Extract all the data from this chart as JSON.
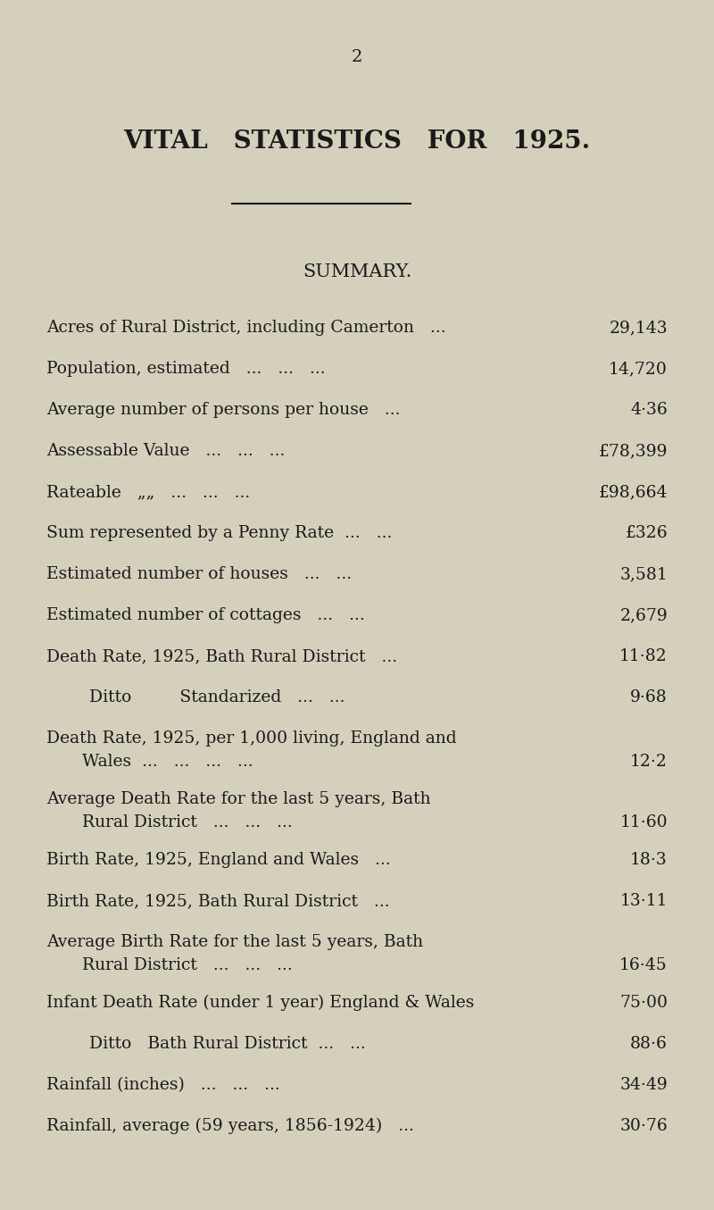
{
  "page_number": "2",
  "title": "VITAL   STATISTICS   FOR   1925.",
  "subtitle": "SUMMARY.",
  "bg_color": "#d4d0bb",
  "text_color": "#1a1a1a",
  "fig_width": 8.0,
  "fig_height": 13.55,
  "dpi": 100,
  "rows": [
    {
      "label": "Acres of Rural District, including Camerton   ...",
      "value": "29,143",
      "indent": 0,
      "multiline": false
    },
    {
      "label": "Population, estimated   ...   ...   ...",
      "value": "14,720",
      "indent": 0,
      "multiline": false
    },
    {
      "label": "Average number of persons per house   ...",
      "value": "4·36",
      "indent": 0,
      "multiline": false
    },
    {
      "label": "Assessable Value   ...   ...   ...",
      "value": "£78,399",
      "indent": 0,
      "multiline": false
    },
    {
      "label": "Rateable   „„   ...   ...   ...",
      "value": "£98,664",
      "indent": 0,
      "multiline": false
    },
    {
      "label": "Sum represented by a Penny Rate  ...   ...",
      "value": "£326",
      "indent": 0,
      "multiline": false
    },
    {
      "label": "Estimated number of houses   ...   ...",
      "value": "3,581",
      "indent": 0,
      "multiline": false
    },
    {
      "label": "Estimated number of cottages   ...   ...",
      "value": "2,679",
      "indent": 0,
      "multiline": false
    },
    {
      "label": "Death Rate, 1925, Bath Rural District   ...",
      "value": "11·82",
      "indent": 0,
      "multiline": false
    },
    {
      "label": "Ditto         Standarized   ...   ...",
      "value": "9·68",
      "indent": 1,
      "multiline": false
    },
    {
      "label": "Death Rate, 1925, per 1,000 living, England and Wales ...   ...   ...   ...",
      "value": "12·2",
      "indent": 0,
      "multiline": true,
      "line1": "Death Rate, 1925, per 1,000 living, England and",
      "line2": "Wales  ...   ...   ...   ..."
    },
    {
      "label": "Average Death Rate for the last 5 years, Bath Rural District   ...   ...   ...",
      "value": "11·60",
      "indent": 0,
      "multiline": true,
      "line1": "Average Death Rate for the last 5 years, Bath",
      "line2": "Rural District   ...   ...   ..."
    },
    {
      "label": "Birth Rate, 1925, England and Wales   ...",
      "value": "18·3",
      "indent": 0,
      "multiline": false
    },
    {
      "label": "Birth Rate, 1925, Bath Rural District   ...",
      "value": "13·11",
      "indent": 0,
      "multiline": false
    },
    {
      "label": "Average Birth Rate for the last 5 years, Bath Rural District   ...   ...   ...",
      "value": "16·45",
      "indent": 0,
      "multiline": true,
      "line1": "Average Birth Rate for the last 5 years, Bath",
      "line2": "Rural District   ...   ...   ..."
    },
    {
      "label": "Infant Death Rate (under 1 year) England & Wales",
      "value": "75·00",
      "indent": 0,
      "multiline": false
    },
    {
      "label": "Ditto   Bath Rural District  ...   ...",
      "value": "88·6",
      "indent": 1,
      "multiline": false
    },
    {
      "label": "Rainfall (inches)   ...   ...   ...",
      "value": "34·49",
      "indent": 0,
      "multiline": false
    },
    {
      "label": "Rainfall, average (59 years, 1856-1924)   ...",
      "value": "30·76",
      "indent": 0,
      "multiline": false
    }
  ]
}
